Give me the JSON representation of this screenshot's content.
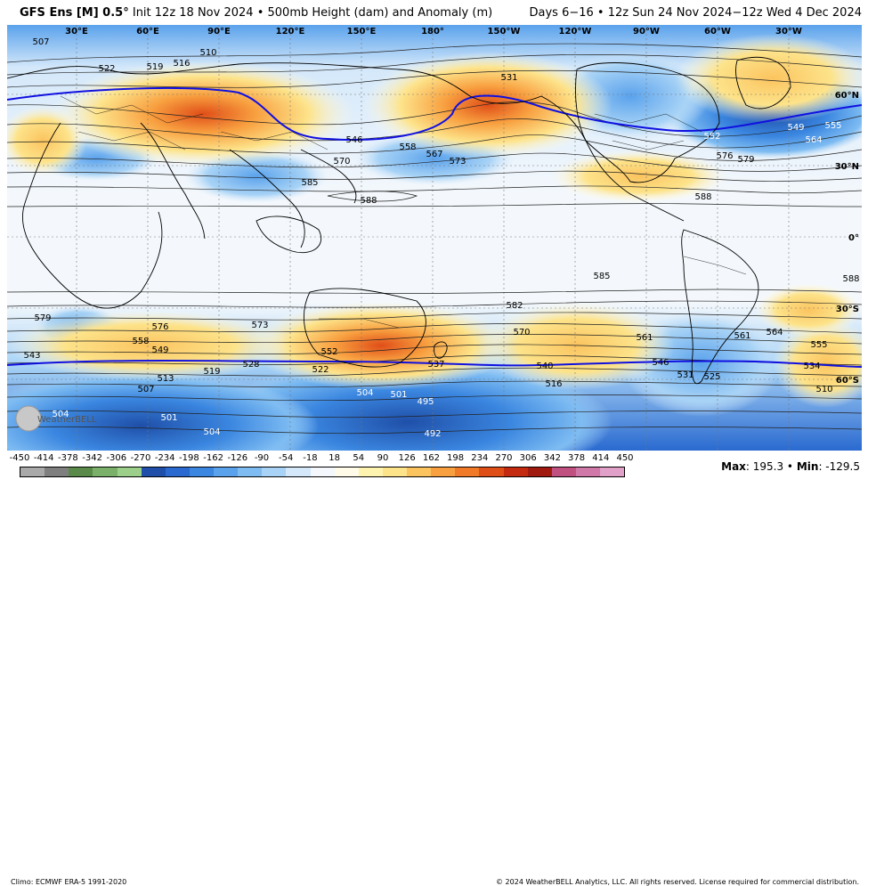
{
  "header": {
    "model": "GFS Ens [M] 0.5",
    "degree_symbol": "°",
    "init": "Init 12z 18 Nov 2024",
    "bullet": "•",
    "product": "500mb Height (dam) and Anomaly (m)",
    "days": "Days 6−16",
    "valid_range": "12z Sun 24 Nov 2024−12z Wed 4 Dec 2024"
  },
  "map": {
    "longitude_labels": [
      "30°E",
      "60°E",
      "90°E",
      "120°E",
      "150°E",
      "180°",
      "150°W",
      "120°W",
      "90°W",
      "60°W",
      "30°W"
    ],
    "latitude_labels": [
      "60°N",
      "30°N",
      "0°",
      "30°S",
      "60°S"
    ],
    "contour_labels_white": [
      "504",
      "501",
      "495",
      "492",
      "504",
      "501",
      "504",
      "549",
      "555",
      "564",
      "552"
    ],
    "contour_labels_black": [
      "507",
      "522",
      "519",
      "516",
      "510",
      "531",
      "546",
      "558",
      "567",
      "573",
      "570",
      "585",
      "588",
      "576",
      "579",
      "588",
      "585",
      "582",
      "579",
      "576",
      "573",
      "570",
      "561",
      "564",
      "555",
      "558",
      "549",
      "543",
      "552",
      "519",
      "528",
      "513",
      "507",
      "522",
      "537",
      "540",
      "516",
      "546",
      "531",
      "525",
      "534",
      "510",
      "588",
      "561"
    ],
    "watermark": "WeatherBELL"
  },
  "footer": {
    "climo": "Climo: ECMWF ERA-5 1991-2020",
    "copyright": "© 2024 WeatherBELL Analytics, LLC. All rights reserved. License required for commercial distribution."
  },
  "colorbar": {
    "ticks": [
      "-450",
      "-414",
      "-378",
      "-342",
      "-306",
      "-270",
      "-234",
      "-198",
      "-162",
      "-126",
      "-90",
      "-54",
      "-18",
      "18",
      "54",
      "90",
      "126",
      "162",
      "198",
      "234",
      "270",
      "306",
      "342",
      "378",
      "414",
      "450"
    ],
    "colors": [
      "#a9a9a9",
      "#7f7f7f",
      "#5a8a4a",
      "#7bb06a",
      "#9cd08a",
      "#1f4fa8",
      "#2a6ad0",
      "#3a86e0",
      "#5aa2ec",
      "#7ebcf2",
      "#a8d3f6",
      "#d4e8fa",
      "#f4f8fc",
      "#fffbe8",
      "#fff3b0",
      "#fde38a",
      "#fbc45f",
      "#f8a040",
      "#f07a28",
      "#e04e18",
      "#c42a10",
      "#a01a10",
      "#c05080",
      "#d078a8",
      "#e0a0c8"
    ]
  },
  "maxmin": {
    "max_label": "Max",
    "max_value": ": 195.3 •",
    "min_label": "Min",
    "min_value": ": -129.5"
  }
}
